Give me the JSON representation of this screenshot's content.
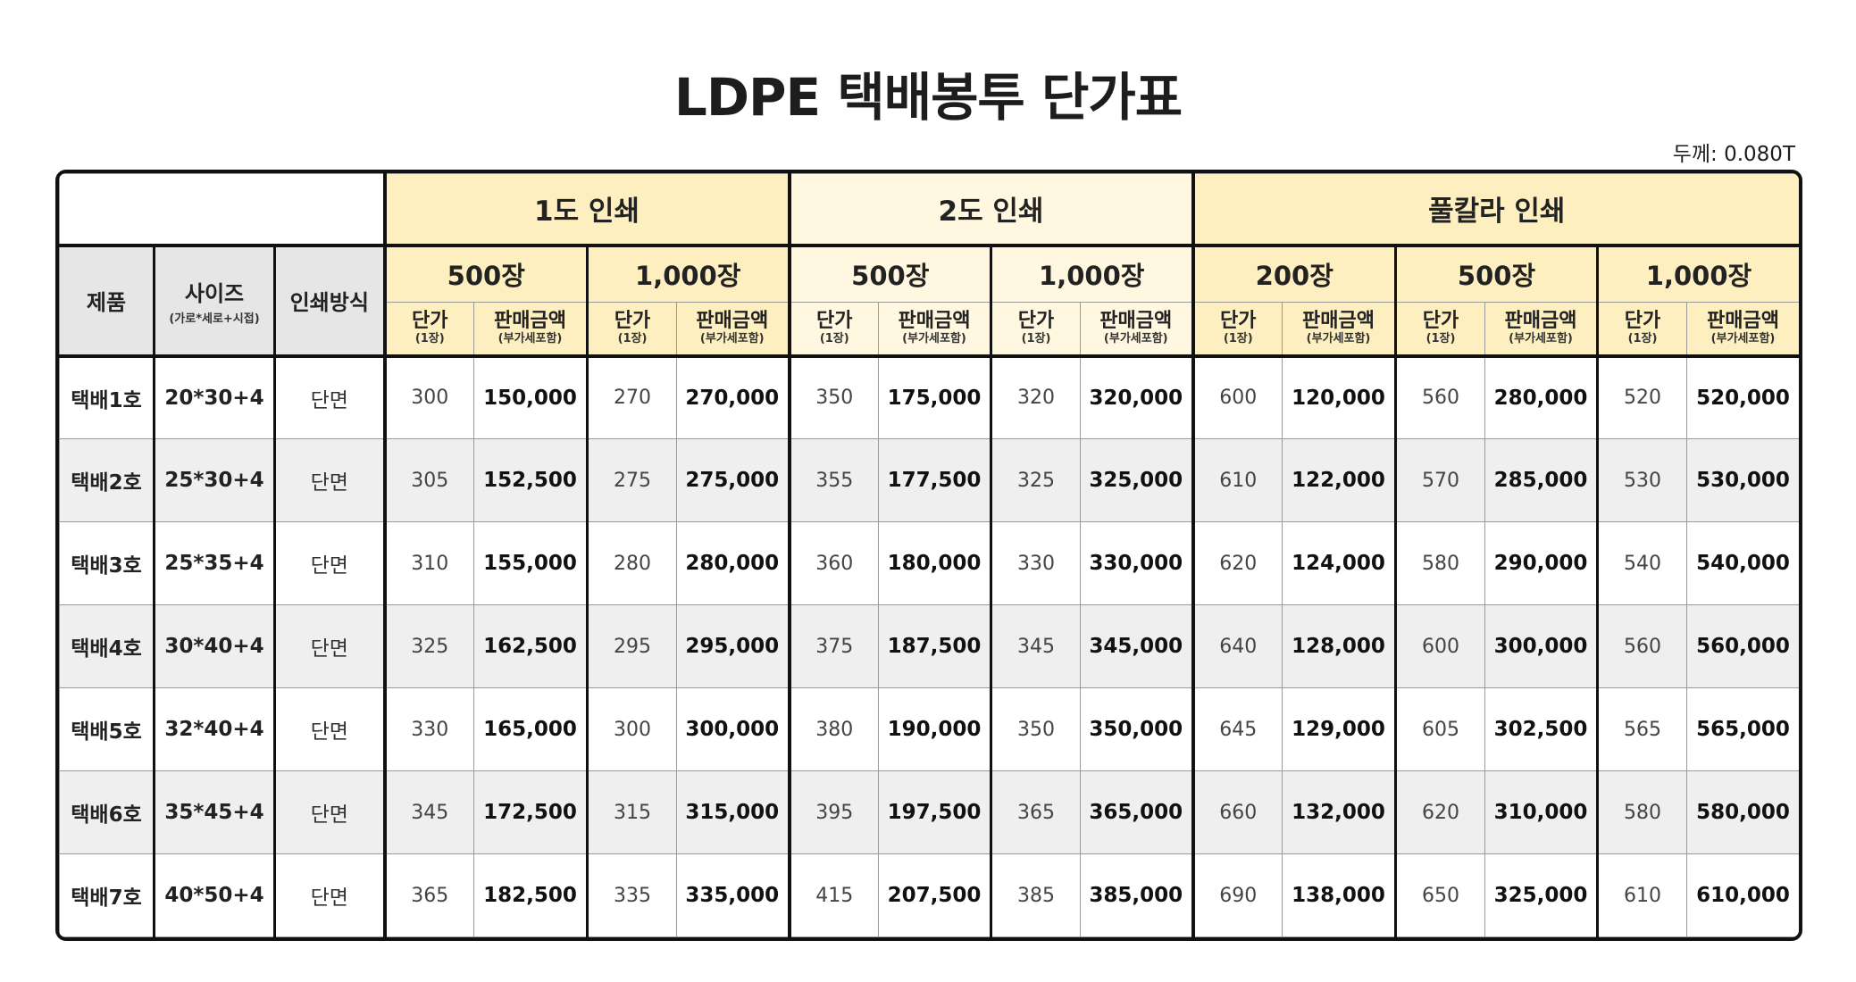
{
  "title": "LDPE 택배봉투 단가표",
  "thickness": "두께: 0.080T",
  "header": {
    "product": "제품",
    "size": "사이즈",
    "size_note": "(가로*세로+시접)",
    "method": "인쇄방식",
    "groups": [
      {
        "label": "1도 인쇄",
        "quantities": [
          "500장",
          "1,000장"
        ]
      },
      {
        "label": "2도 인쇄",
        "quantities": [
          "500장",
          "1,000장"
        ]
      },
      {
        "label": "풀칼라 인쇄",
        "quantities": [
          "200장",
          "500장",
          "1,000장"
        ]
      }
    ],
    "unit_label": "단가",
    "unit_note": "(1장)",
    "amount_label": "판매금액",
    "amount_note": "(부가세포함)"
  },
  "rows": [
    {
      "product": "택배1호",
      "size": "20*30+4",
      "method": "단면",
      "prices": [
        [
          "300",
          "150,000"
        ],
        [
          "270",
          "270,000"
        ],
        [
          "350",
          "175,000"
        ],
        [
          "320",
          "320,000"
        ],
        [
          "600",
          "120,000"
        ],
        [
          "560",
          "280,000"
        ],
        [
          "520",
          "520,000"
        ]
      ]
    },
    {
      "product": "택배2호",
      "size": "25*30+4",
      "method": "단면",
      "prices": [
        [
          "305",
          "152,500"
        ],
        [
          "275",
          "275,000"
        ],
        [
          "355",
          "177,500"
        ],
        [
          "325",
          "325,000"
        ],
        [
          "610",
          "122,000"
        ],
        [
          "570",
          "285,000"
        ],
        [
          "530",
          "530,000"
        ]
      ]
    },
    {
      "product": "택배3호",
      "size": "25*35+4",
      "method": "단면",
      "prices": [
        [
          "310",
          "155,000"
        ],
        [
          "280",
          "280,000"
        ],
        [
          "360",
          "180,000"
        ],
        [
          "330",
          "330,000"
        ],
        [
          "620",
          "124,000"
        ],
        [
          "580",
          "290,000"
        ],
        [
          "540",
          "540,000"
        ]
      ]
    },
    {
      "product": "택배4호",
      "size": "30*40+4",
      "method": "단면",
      "prices": [
        [
          "325",
          "162,500"
        ],
        [
          "295",
          "295,000"
        ],
        [
          "375",
          "187,500"
        ],
        [
          "345",
          "345,000"
        ],
        [
          "640",
          "128,000"
        ],
        [
          "600",
          "300,000"
        ],
        [
          "560",
          "560,000"
        ]
      ]
    },
    {
      "product": "택배5호",
      "size": "32*40+4",
      "method": "단면",
      "prices": [
        [
          "330",
          "165,000"
        ],
        [
          "300",
          "300,000"
        ],
        [
          "380",
          "190,000"
        ],
        [
          "350",
          "350,000"
        ],
        [
          "645",
          "129,000"
        ],
        [
          "605",
          "302,500"
        ],
        [
          "565",
          "565,000"
        ]
      ]
    },
    {
      "product": "택배6호",
      "size": "35*45+4",
      "method": "단면",
      "prices": [
        [
          "345",
          "172,500"
        ],
        [
          "315",
          "315,000"
        ],
        [
          "395",
          "197,500"
        ],
        [
          "365",
          "365,000"
        ],
        [
          "660",
          "132,000"
        ],
        [
          "620",
          "310,000"
        ],
        [
          "580",
          "580,000"
        ]
      ]
    },
    {
      "product": "택배7호",
      "size": "40*50+4",
      "method": "단면",
      "prices": [
        [
          "365",
          "182,500"
        ],
        [
          "335",
          "335,000"
        ],
        [
          "415",
          "207,500"
        ],
        [
          "385",
          "385,000"
        ],
        [
          "690",
          "138,000"
        ],
        [
          "650",
          "325,000"
        ],
        [
          "610",
          "610,000"
        ]
      ]
    }
  ],
  "colors": {
    "group_header_a": "#fdefbf",
    "group_header_b": "#fff7df",
    "label_column": "#e6e6e6",
    "row_alt": "#efefef",
    "border": "#111111"
  }
}
